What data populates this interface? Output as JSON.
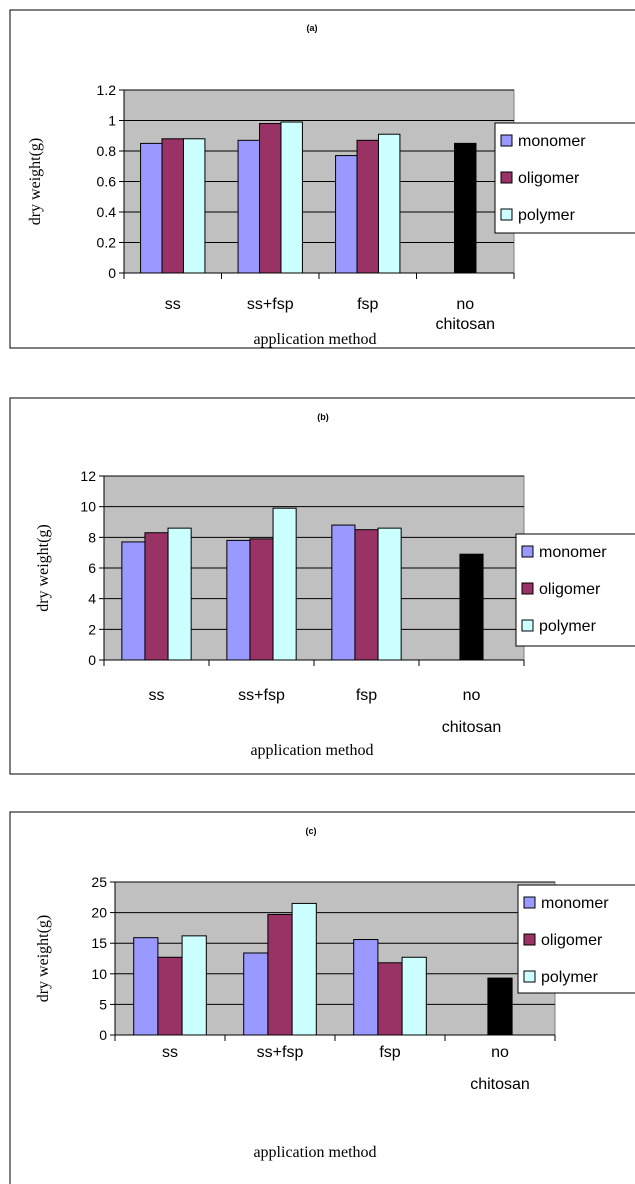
{
  "chart_data": [
    {
      "type": "bar",
      "title": "(a)",
      "xlabel": "application method",
      "ylabel": "dry weight(g)",
      "categories": [
        [
          "ss"
        ],
        [
          "ss+fsp"
        ],
        [
          "fsp"
        ],
        [
          "no",
          "chitosan"
        ]
      ],
      "ylim": [
        0,
        1.2
      ],
      "yticks": [
        "0",
        "0.2",
        "0.4",
        "0.6",
        "0.8",
        "1",
        "1.2"
      ],
      "grid": true,
      "legend_position": "right",
      "series": [
        {
          "name": "monomer",
          "color": "#9999ff",
          "values": [
            0.85,
            0.87,
            0.77,
            null
          ]
        },
        {
          "name": "oligomer",
          "color": "#993366",
          "values": [
            0.88,
            0.98,
            0.87,
            null
          ]
        },
        {
          "name": "polymer",
          "color": "#ccffff",
          "values": [
            0.88,
            0.99,
            0.91,
            null
          ]
        },
        {
          "name": "",
          "color": "#000000",
          "values": [
            null,
            null,
            null,
            0.85
          ]
        }
      ]
    },
    {
      "type": "bar",
      "title": "(b)",
      "xlabel": "application method",
      "ylabel": "dry weight(g)",
      "categories": [
        [
          "ss"
        ],
        [
          "ss+fsp"
        ],
        [
          "fsp"
        ],
        [
          "no",
          "chitosan"
        ]
      ],
      "ylim": [
        0,
        12
      ],
      "yticks": [
        "0",
        "2",
        "4",
        "6",
        "8",
        "10",
        "12"
      ],
      "grid": true,
      "legend_position": "right",
      "series": [
        {
          "name": "monomer",
          "color": "#9999ff",
          "values": [
            7.7,
            7.8,
            8.8,
            null
          ]
        },
        {
          "name": "oligomer",
          "color": "#993366",
          "values": [
            8.3,
            7.9,
            8.5,
            null
          ]
        },
        {
          "name": "polymer",
          "color": "#ccffff",
          "values": [
            8.6,
            9.9,
            8.6,
            null
          ]
        },
        {
          "name": "",
          "color": "#000000",
          "values": [
            null,
            null,
            null,
            6.9
          ]
        }
      ]
    },
    {
      "type": "bar",
      "title": "(c)",
      "xlabel": "application method",
      "ylabel": "dry weight(g)",
      "categories": [
        [
          "ss"
        ],
        [
          "ss+fsp"
        ],
        [
          "fsp"
        ],
        [
          "no",
          "chitosan"
        ]
      ],
      "ylim": [
        0,
        25
      ],
      "yticks": [
        "0",
        "5",
        "10",
        "15",
        "20",
        "25"
      ],
      "grid": true,
      "legend_position": "right",
      "series": [
        {
          "name": "monomer",
          "color": "#9999ff",
          "values": [
            15.9,
            13.4,
            15.6,
            null
          ]
        },
        {
          "name": "oligomer",
          "color": "#993366",
          "values": [
            12.7,
            19.7,
            11.8,
            null
          ]
        },
        {
          "name": "polymer",
          "color": "#ccffff",
          "values": [
            16.2,
            21.5,
            12.7,
            null
          ]
        },
        {
          "name": "",
          "color": "#000000",
          "values": [
            null,
            null,
            null,
            9.3
          ]
        }
      ]
    }
  ]
}
